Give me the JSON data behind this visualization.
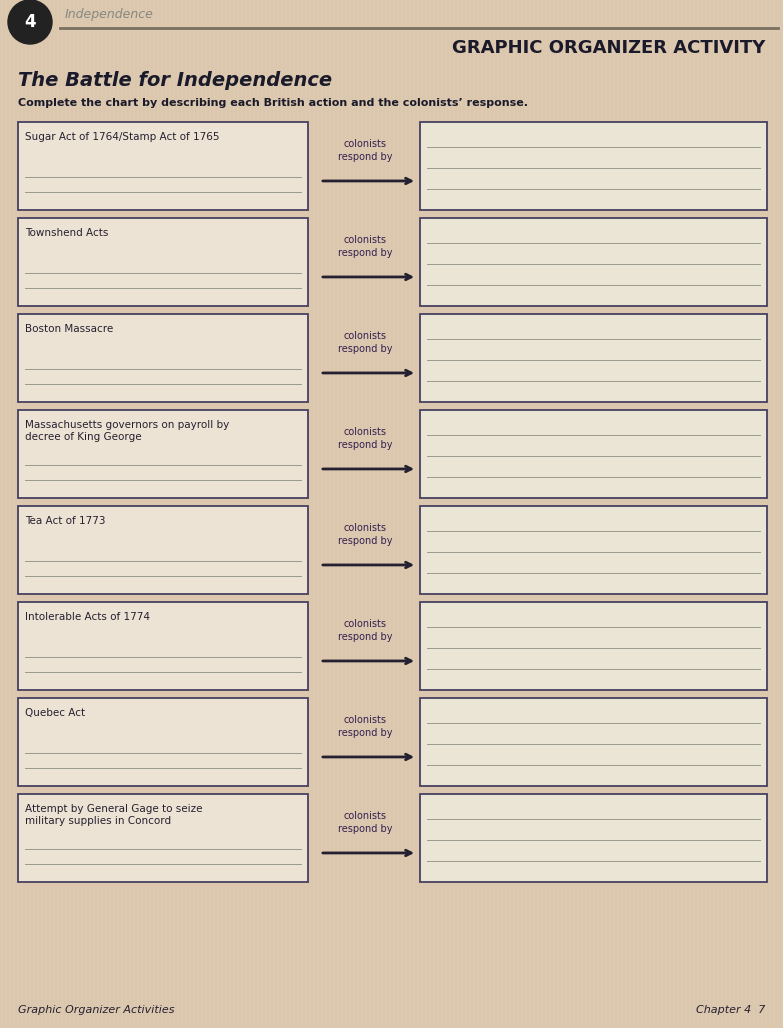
{
  "title": "GRAPHIC ORGANIZER ACTIVITY",
  "subtitle": "The Battle for Independence",
  "instruction": "Complete the chart by describing each British action and the colonists’ response.",
  "bg_color": "#dcc9b0",
  "box_bg_left": "#ede3d4",
  "box_bg_right": "#eae5d5",
  "box_border": "#454060",
  "line_color": "#999990",
  "arrow_color": "#252030",
  "text_color": "#252030",
  "label_color": "#352050",
  "footer_left": "Graphic Organizer Activities",
  "footer_right": "Chapter 4  7",
  "rows": [
    {
      "left": "Sugar Act of 1764/Stamp Act of 1765",
      "label": "colonists\nrespond by"
    },
    {
      "left": "Townshend Acts",
      "label": "colonists\nrespond by"
    },
    {
      "left": "Boston Massacre",
      "label": "colonists\nrespond by"
    },
    {
      "left": "Massachusetts governors on payroll by\ndecree of King George",
      "label": "colonists\nrespond by"
    },
    {
      "left": "Tea Act of 1773",
      "label": "colonists\nrespond by"
    },
    {
      "left": "Intolerable Acts of 1774",
      "label": "colonists\nrespond by"
    },
    {
      "left": "Quebec Act",
      "label": "colonists\nrespond by"
    },
    {
      "left": "Attempt by General Gage to seize\nmilitary supplies in Concord",
      "label": "colonists\nrespond by"
    }
  ],
  "chapter_badge": "4",
  "header_bar_color": "#7a7060",
  "stripe_color": "#c8b89a",
  "header_text_color": "#1a1a2a"
}
